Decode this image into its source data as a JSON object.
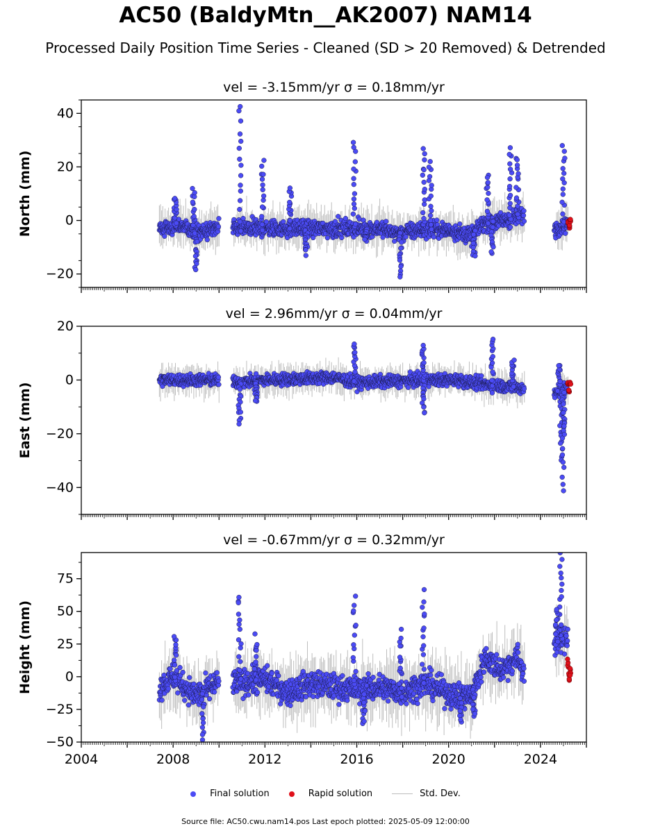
{
  "title": "AC50 (BaldyMtn__AK2007) NAM14",
  "subtitle": "Processed Daily Position Time Series - Cleaned (SD > 20 Removed) & Detrended",
  "legend": {
    "final": "Final solution",
    "rapid": "Rapid solution",
    "stddev": "Std. Dev."
  },
  "footer": "Source file: AC50.cwu.nam14.pos  Last epoch plotted: 2025-05-09 12:00:00",
  "colors": {
    "final": "#4b4bf5",
    "rapid": "#e0101a",
    "stddev": "#bdbdbd",
    "axis": "#000000"
  },
  "chart_data": {
    "type": "scatter",
    "x_label": "",
    "x_range": [
      2004,
      2026
    ],
    "x_ticks": [
      "2004",
      "2008",
      "2012",
      "2016",
      "2020",
      "2024"
    ],
    "gaps": [
      [
        2010.0,
        2010.6
      ],
      [
        2023.3,
        2024.6
      ]
    ],
    "panels": [
      {
        "id": "north",
        "ylabel": "North (mm)",
        "title": "vel = -3.15mm/yr   σ = 0.18mm/yr",
        "ylim": [
          -25,
          45
        ],
        "yticks": [
          "40",
          "20",
          "0",
          "−20"
        ],
        "ytick_values": [
          40,
          20,
          0,
          -20
        ],
        "base": [
          [
            2007.4,
            -3
          ],
          [
            2008.5,
            -2
          ],
          [
            2009.0,
            -5
          ],
          [
            2009.9,
            -3
          ],
          [
            2010.6,
            -3
          ],
          [
            2014.0,
            -3
          ],
          [
            2017.0,
            -3
          ],
          [
            2017.9,
            -5
          ],
          [
            2019.0,
            -3
          ],
          [
            2020.3,
            -4
          ],
          [
            2021.0,
            -6
          ],
          [
            2021.5,
            -1
          ],
          [
            2022.5,
            0
          ],
          [
            2023.2,
            2
          ],
          [
            2024.6,
            -3
          ],
          [
            2025.2,
            -1
          ]
        ],
        "spikes": [
          [
            2008.1,
            9
          ],
          [
            2008.9,
            12
          ],
          [
            2009.0,
            -18
          ],
          [
            2010.9,
            43
          ],
          [
            2011.9,
            22
          ],
          [
            2013.1,
            12
          ],
          [
            2013.8,
            -12
          ],
          [
            2015.9,
            29
          ],
          [
            2016.4,
            -8
          ],
          [
            2017.9,
            -21
          ],
          [
            2018.9,
            27
          ],
          [
            2019.2,
            22
          ],
          [
            2021.1,
            -14
          ],
          [
            2021.7,
            17
          ],
          [
            2021.9,
            -12
          ],
          [
            2022.7,
            27
          ],
          [
            2023.0,
            24
          ],
          [
            2025.0,
            28
          ]
        ],
        "scatter": 2.2,
        "rapid": [
          [
            2025.2,
            -1
          ],
          [
            2025.25,
            -2
          ],
          [
            2025.3,
            0
          ]
        ]
      },
      {
        "id": "east",
        "ylabel": "East (mm)",
        "title": "vel = 2.96mm/yr   σ = 0.04mm/yr",
        "ylim": [
          -50,
          20
        ],
        "yticks": [
          "20",
          "0",
          "−20",
          "−40"
        ],
        "ytick_values": [
          20,
          0,
          -20,
          -40
        ],
        "base": [
          [
            2007.4,
            0
          ],
          [
            2009.0,
            0
          ],
          [
            2009.9,
            0
          ],
          [
            2010.6,
            -1
          ],
          [
            2012.0,
            0
          ],
          [
            2015.0,
            1
          ],
          [
            2016.0,
            -1
          ],
          [
            2019.0,
            0
          ],
          [
            2020.4,
            0
          ],
          [
            2021.0,
            -1
          ],
          [
            2023.2,
            -3
          ],
          [
            2024.6,
            -5
          ],
          [
            2025.2,
            -3
          ]
        ],
        "spikes": [
          [
            2010.9,
            -16
          ],
          [
            2011.6,
            -8
          ],
          [
            2015.9,
            14
          ],
          [
            2018.9,
            -12
          ],
          [
            2018.9,
            13
          ],
          [
            2021.9,
            15
          ],
          [
            2024.9,
            -30
          ],
          [
            2025.0,
            -41
          ],
          [
            2025.0,
            -20
          ],
          [
            2024.8,
            6
          ],
          [
            2022.8,
            7
          ]
        ],
        "scatter": 1.6,
        "rapid": [
          [
            2025.2,
            -2
          ],
          [
            2025.25,
            -4
          ],
          [
            2025.3,
            -1
          ]
        ]
      },
      {
        "id": "height",
        "ylabel": "Height (mm)",
        "title": "vel = -0.67mm/yr   σ = 0.32mm/yr",
        "ylim": [
          -50,
          95
        ],
        "yticks": [
          "75",
          "50",
          "25",
          "0",
          "−25",
          "−50"
        ],
        "ytick_values": [
          75,
          50,
          25,
          0,
          -25,
          -50
        ],
        "base": [
          [
            2007.4,
            -8
          ],
          [
            2008.0,
            0
          ],
          [
            2009.0,
            -15
          ],
          [
            2009.9,
            -5
          ],
          [
            2010.6,
            -5
          ],
          [
            2012.0,
            -2
          ],
          [
            2013.0,
            -12
          ],
          [
            2014.0,
            -5
          ],
          [
            2015.0,
            -8
          ],
          [
            2016.0,
            -10
          ],
          [
            2017.0,
            -8
          ],
          [
            2018.0,
            -12
          ],
          [
            2019.0,
            -5
          ],
          [
            2020.3,
            -15
          ],
          [
            2021.0,
            -15
          ],
          [
            2021.6,
            15
          ],
          [
            2022.3,
            5
          ],
          [
            2023.0,
            15
          ],
          [
            2023.2,
            5
          ],
          [
            2024.6,
            25
          ],
          [
            2025.2,
            30
          ]
        ],
        "spikes": [
          [
            2008.1,
            32
          ],
          [
            2009.3,
            -48
          ],
          [
            2010.9,
            64
          ],
          [
            2011.6,
            30
          ],
          [
            2015.9,
            60
          ],
          [
            2016.3,
            -37
          ],
          [
            2018.9,
            65
          ],
          [
            2017.9,
            35
          ],
          [
            2020.5,
            -35
          ],
          [
            2021.1,
            -30
          ],
          [
            2024.9,
            94
          ],
          [
            2024.7,
            50
          ]
        ],
        "scatter": 7,
        "rapid": [
          [
            2025.2,
            10
          ],
          [
            2025.25,
            0
          ],
          [
            2025.3,
            5
          ]
        ]
      }
    ]
  }
}
